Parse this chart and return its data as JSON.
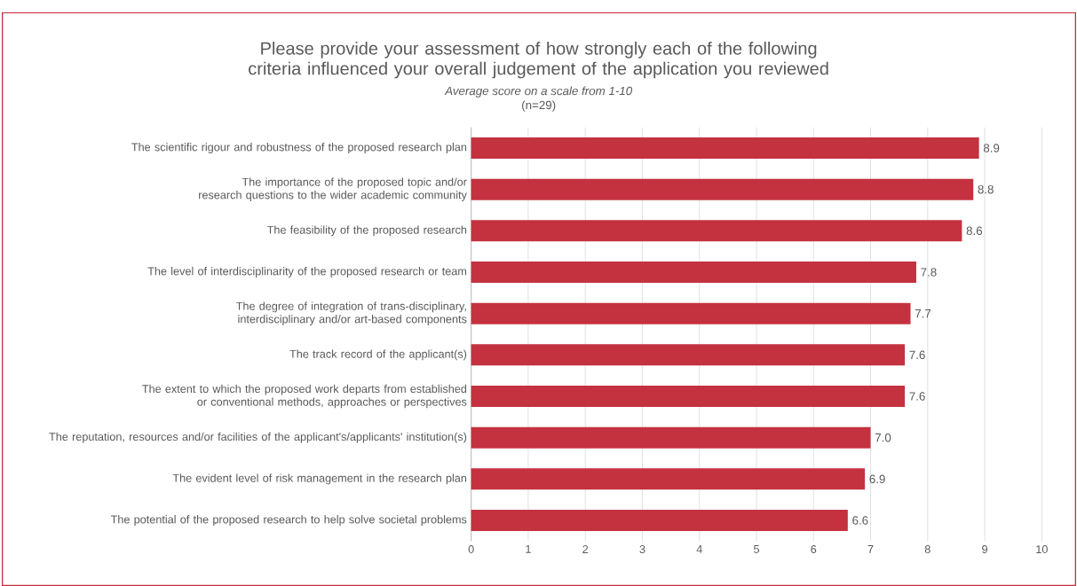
{
  "chart_data": {
    "type": "bar",
    "orientation": "horizontal",
    "title": "Please provide your assessment of how strongly each of the following criteria influenced your overall judgement of the application you reviewed",
    "subtitle": "*Average score on a scale from 1-10*",
    "annotations": [
      "(n=29)"
    ],
    "categories": [
      "The scientific rigour and robustness of the proposed research plan",
      "The importance of the proposed topic and/or research questions to the wider academic community",
      "The feasibility of the proposed research",
      "The level of interdisciplinarity of the proposed research or team",
      "The degree of integration of trans-disciplinary, interdisciplinary and/or art-based components",
      "The track record of the applicant(s)",
      "The extent to which the proposed work departs from established or conventional methods, approaches or perspectives",
      "The reputation, resources and/or facilities of the applicant's/applicants' institution(s)",
      "The evident level of risk management in the research plan",
      "The potential of the proposed research to help solve societal problems"
    ],
    "values": [
      8.9,
      8.8,
      8.6,
      7.8,
      7.7,
      7.6,
      7.6,
      7.0,
      6.9,
      6.6
    ],
    "value_labels": [
      "8.9",
      "8.8",
      "8.6",
      "7.8",
      "7.7",
      "7.6",
      "7.6",
      "7.0",
      "6.9",
      "6.6"
    ],
    "color": "#c4323f",
    "xlim": [
      0,
      10
    ],
    "xticks": [
      0,
      1,
      2,
      3,
      4,
      5,
      6,
      7,
      8,
      9,
      10
    ],
    "grid": "x"
  }
}
